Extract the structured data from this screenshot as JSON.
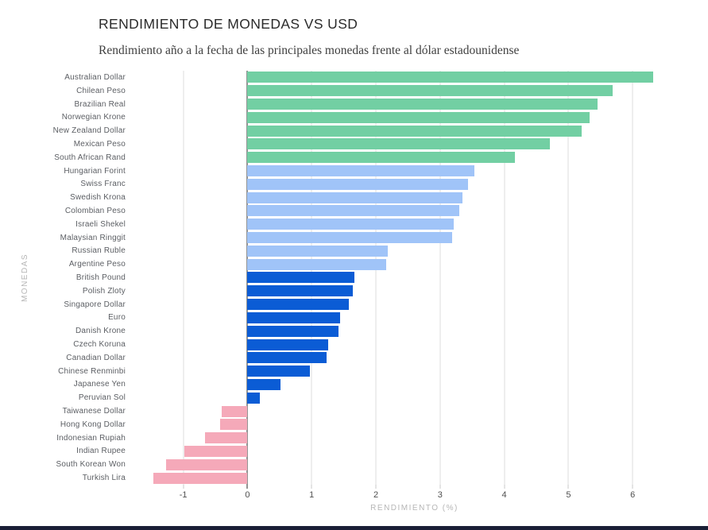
{
  "chart_data": {
    "type": "bar",
    "orientation": "horizontal",
    "title": "RENDIMIENTO DE MONEDAS VS USD",
    "subtitle": "Rendimiento año a la fecha de las principales monedas frente al dólar estadounidense",
    "xlabel": "RENDIMIENTO (%)",
    "ylabel": "MONEDAS",
    "xlim": [
      -1.8,
      7.0
    ],
    "xticks": [
      -1,
      0,
      1,
      2,
      3,
      4,
      5,
      6
    ],
    "grid": true,
    "legend": false,
    "categories": [
      "Australian Dollar",
      "Chilean Peso",
      "Brazilian Real",
      "Norwegian Krone",
      "New Zealand Dollar",
      "Mexican Peso",
      "South African Rand",
      "Hungarian Forint",
      "Swiss Franc",
      "Swedish Krona",
      "Colombian Peso",
      "Israeli Shekel",
      "Malaysian Ringgit",
      "Russian Ruble",
      "Argentine Peso",
      "British Pound",
      "Polish Zloty",
      "Singapore Dollar",
      "Euro",
      "Danish Krone",
      "Czech Koruna",
      "Canadian Dollar",
      "Chinese Renminbi",
      "Japanese Yen",
      "Peruvian Sol",
      "Taiwanese Dollar",
      "Hong Kong Dollar",
      "Indonesian Rupiah",
      "Indian Rupee",
      "South Korean Won",
      "Turkish Lira"
    ],
    "values": [
      6.32,
      5.69,
      5.45,
      5.33,
      5.2,
      4.71,
      4.17,
      3.53,
      3.43,
      3.35,
      3.3,
      3.21,
      3.19,
      2.18,
      2.16,
      1.66,
      1.64,
      1.58,
      1.44,
      1.42,
      1.26,
      1.23,
      0.97,
      0.51,
      0.19,
      -0.4,
      -0.42,
      -0.66,
      -0.98,
      -1.27,
      -1.46
    ],
    "groups": [
      "green",
      "green",
      "green",
      "green",
      "green",
      "green",
      "green",
      "light_blue",
      "light_blue",
      "light_blue",
      "light_blue",
      "light_blue",
      "light_blue",
      "light_blue",
      "light_blue",
      "dark_blue",
      "dark_blue",
      "dark_blue",
      "dark_blue",
      "dark_blue",
      "dark_blue",
      "dark_blue",
      "dark_blue",
      "dark_blue",
      "dark_blue",
      "pink",
      "pink",
      "pink",
      "pink",
      "pink",
      "pink"
    ],
    "colors": {
      "green": "#72CFA3",
      "light_blue": "#A0C4F8",
      "dark_blue": "#0B5CD5",
      "pink": "#F5A9B9",
      "zero_line": "#2a2a2a",
      "gridline": "#dcdcdc",
      "footer_bar": "#1a1f36"
    }
  }
}
